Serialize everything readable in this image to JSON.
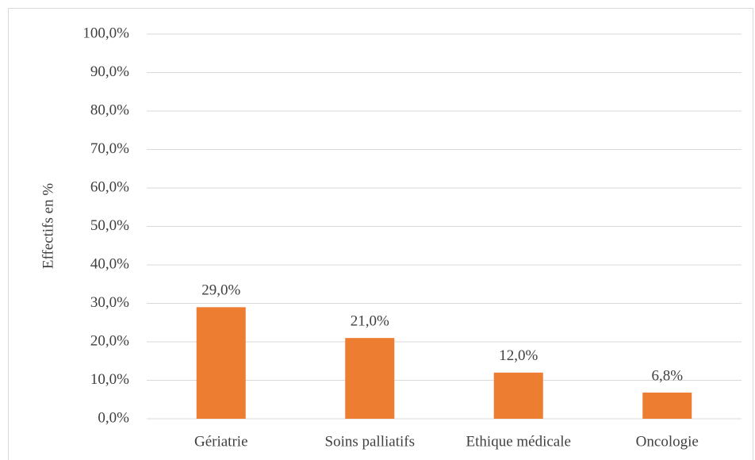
{
  "chart_data": {
    "type": "bar",
    "y_label": "Effectifs en %",
    "categories": [
      "Gériatrie",
      "Soins palliatifs",
      "Ethique médicale",
      "Oncologie"
    ],
    "values": [
      29.0,
      21.0,
      12.0,
      6.8
    ],
    "value_labels": [
      "29,0%",
      "21,0%",
      "12,0%",
      "6,8%"
    ],
    "color": "#ed7d31",
    "ylim": [
      0,
      100
    ],
    "yticks": [
      {
        "value": 0,
        "label": "0,0%"
      },
      {
        "value": 10,
        "label": "10,0%"
      },
      {
        "value": 20,
        "label": "20,0%"
      },
      {
        "value": 30,
        "label": "30,0%"
      },
      {
        "value": 40,
        "label": "40,0%"
      },
      {
        "value": 50,
        "label": "50,0%"
      },
      {
        "value": 60,
        "label": "60,0%"
      },
      {
        "value": 70,
        "label": "70,0%"
      },
      {
        "value": 80,
        "label": "80,0%"
      },
      {
        "value": 90,
        "label": "90,0%"
      },
      {
        "value": 100,
        "label": "100,0%"
      }
    ],
    "grid": true
  }
}
